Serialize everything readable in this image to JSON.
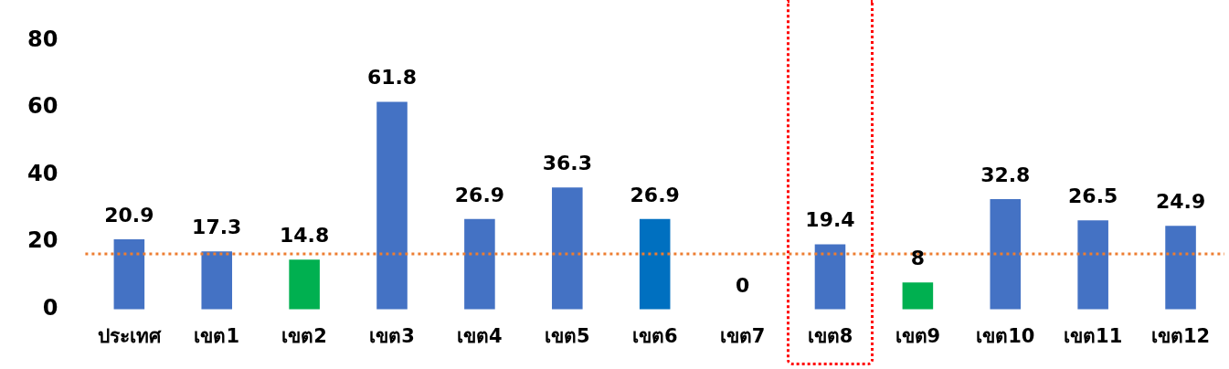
{
  "chart_data": {
    "type": "bar",
    "categories": [
      "ประเทศ",
      "เขต1",
      "เขต2",
      "เขต3",
      "เขต4",
      "เขต5",
      "เขต6",
      "เขต7",
      "เขต8",
      "เขต9",
      "เขต10",
      "เขต11",
      "เขต12"
    ],
    "values": [
      20.9,
      17.3,
      14.8,
      61.8,
      26.9,
      36.3,
      26.9,
      0,
      19.4,
      8,
      32.8,
      26.5,
      24.9
    ],
    "colors": [
      "#4472c4",
      "#4472c4",
      "#00b050",
      "#4472c4",
      "#4472c4",
      "#4472c4",
      "#0070c0",
      "#4472c4",
      "#4472c4",
      "#00b050",
      "#4472c4",
      "#4472c4",
      "#4472c4"
    ],
    "ylim": [
      0,
      80
    ],
    "yticks": [
      0,
      20,
      40,
      60,
      80
    ],
    "grid": false,
    "legend": false,
    "data_labels": true,
    "ref_lines": [
      {
        "axis": "y",
        "value": 16.5,
        "color": "#ed7d31",
        "line_style": "dotted"
      }
    ]
  }
}
